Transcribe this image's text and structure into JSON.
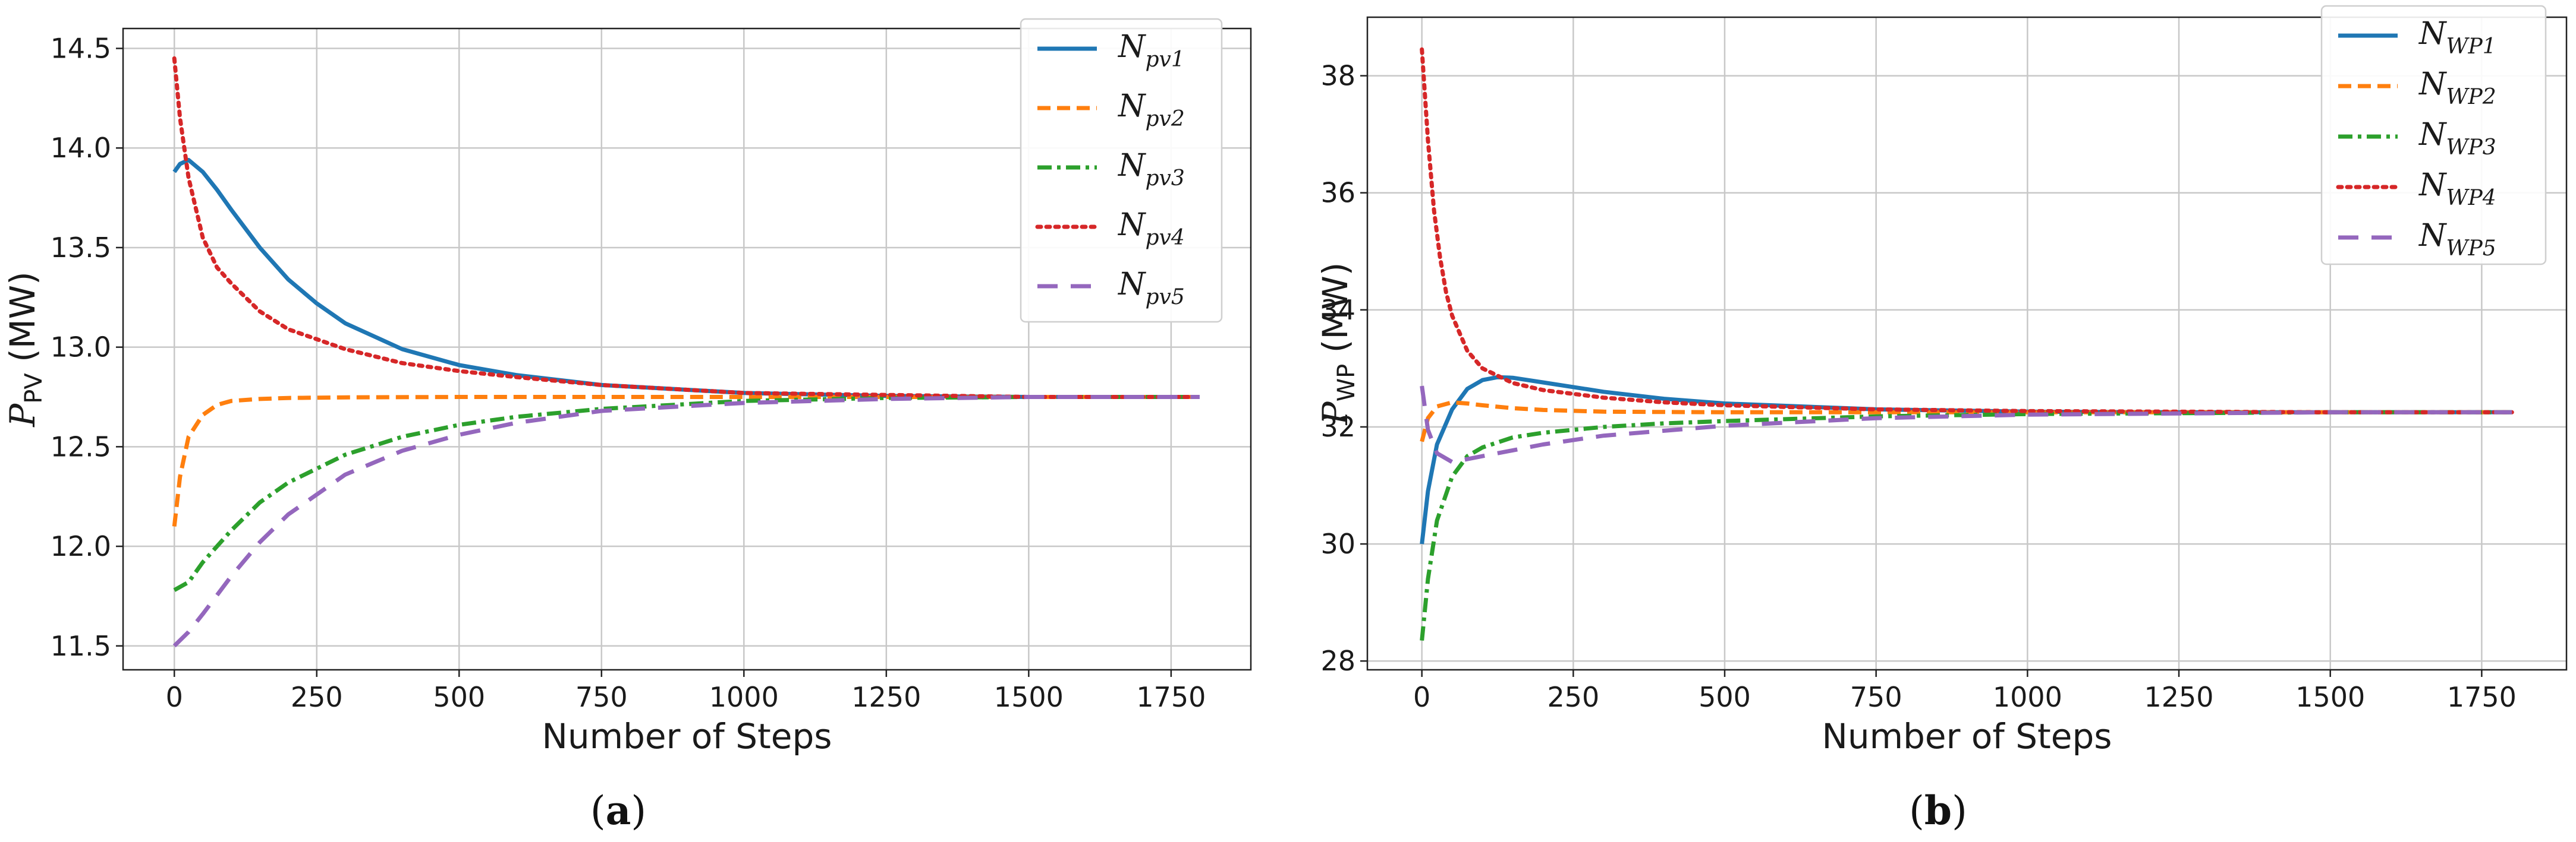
{
  "chart_data": [
    {
      "type": "line",
      "panel_label": "a",
      "xlabel": "Number of Steps",
      "ylabel_symbol": "P",
      "ylabel_subscript": "PV",
      "ylabel_unit": "(MW)",
      "xlim": [
        -90,
        1890
      ],
      "ylim": [
        11.38,
        14.6
      ],
      "xticks": [
        0,
        250,
        500,
        750,
        1000,
        1250,
        1500,
        1750
      ],
      "yticks": [
        11.5,
        12.0,
        12.5,
        13.0,
        13.5,
        14.0,
        14.5
      ],
      "ytick_labels": [
        "11.5",
        "12.0",
        "12.5",
        "13.0",
        "13.5",
        "14.0",
        "14.5"
      ],
      "grid": true,
      "legend_position": "top-right",
      "series": [
        {
          "name": "N",
          "sub": "pv1",
          "color": "#1f77b4",
          "dash": "solid",
          "x": [
            0,
            10,
            25,
            50,
            75,
            100,
            150,
            200,
            250,
            300,
            400,
            500,
            600,
            750,
            1000,
            1250,
            1500,
            1800
          ],
          "y": [
            13.88,
            13.92,
            13.94,
            13.88,
            13.79,
            13.69,
            13.5,
            13.34,
            13.22,
            13.12,
            12.99,
            12.91,
            12.86,
            12.81,
            12.77,
            12.755,
            12.75,
            12.75
          ]
        },
        {
          "name": "N",
          "sub": "pv2",
          "color": "#ff7f0e",
          "dash": "dashed",
          "x": [
            0,
            10,
            25,
            50,
            75,
            100,
            150,
            200,
            300,
            500,
            750,
            1000,
            1250,
            1500,
            1800
          ],
          "y": [
            12.1,
            12.35,
            12.55,
            12.66,
            12.71,
            12.73,
            12.74,
            12.745,
            12.748,
            12.75,
            12.75,
            12.75,
            12.75,
            12.75,
            12.75
          ]
        },
        {
          "name": "N",
          "sub": "pv3",
          "color": "#2ca02c",
          "dash": "dashdot",
          "x": [
            0,
            25,
            50,
            100,
            150,
            200,
            300,
            400,
            500,
            600,
            750,
            1000,
            1250,
            1500,
            1800
          ],
          "y": [
            11.78,
            11.82,
            11.92,
            12.08,
            12.22,
            12.32,
            12.46,
            12.55,
            12.61,
            12.65,
            12.69,
            12.73,
            12.745,
            12.75,
            12.75
          ]
        },
        {
          "name": "N",
          "sub": "pv4",
          "color": "#d62728",
          "dash": "dotted",
          "x": [
            0,
            10,
            25,
            50,
            75,
            100,
            150,
            200,
            300,
            400,
            500,
            600,
            750,
            1000,
            1250,
            1500,
            1800
          ],
          "y": [
            14.45,
            14.15,
            13.85,
            13.55,
            13.4,
            13.32,
            13.18,
            13.09,
            12.99,
            12.92,
            12.88,
            12.85,
            12.81,
            12.77,
            12.76,
            12.75,
            12.75
          ]
        },
        {
          "name": "N",
          "sub": "pv5",
          "color": "#9467bd",
          "dash": "longdash",
          "x": [
            0,
            25,
            50,
            100,
            150,
            200,
            300,
            400,
            500,
            600,
            750,
            1000,
            1250,
            1500,
            1800
          ],
          "y": [
            11.5,
            11.57,
            11.66,
            11.85,
            12.02,
            12.16,
            12.36,
            12.48,
            12.56,
            12.62,
            12.68,
            12.72,
            12.74,
            12.75,
            12.75
          ]
        }
      ]
    },
    {
      "type": "line",
      "panel_label": "b",
      "xlabel": "Number of Steps",
      "ylabel_symbol": "P",
      "ylabel_subscript": "WP",
      "ylabel_unit": "(MW)",
      "xlim": [
        -90,
        1890
      ],
      "ylim": [
        27.85,
        39.0
      ],
      "xticks": [
        0,
        250,
        500,
        750,
        1000,
        1250,
        1500,
        1750
      ],
      "yticks": [
        28,
        30,
        32,
        34,
        36,
        38
      ],
      "ytick_labels": [
        "28",
        "30",
        "32",
        "34",
        "36",
        "38"
      ],
      "grid": true,
      "legend_position": "top-right",
      "series": [
        {
          "name": "N",
          "sub": "WP1",
          "color": "#1f77b4",
          "dash": "solid",
          "x": [
            0,
            10,
            25,
            50,
            75,
            100,
            125,
            150,
            200,
            300,
            400,
            500,
            750,
            1000,
            1250,
            1500,
            1800
          ],
          "y": [
            30.0,
            30.9,
            31.7,
            32.3,
            32.65,
            32.8,
            32.85,
            32.84,
            32.76,
            32.6,
            32.48,
            32.4,
            32.3,
            32.26,
            32.25,
            32.25,
            32.25
          ]
        },
        {
          "name": "N",
          "sub": "WP2",
          "color": "#ff7f0e",
          "dash": "dashed",
          "x": [
            0,
            10,
            25,
            50,
            75,
            100,
            150,
            200,
            300,
            500,
            750,
            1000,
            1500,
            1800
          ],
          "y": [
            31.75,
            32.15,
            32.35,
            32.42,
            32.4,
            32.37,
            32.32,
            32.29,
            32.26,
            32.25,
            32.25,
            32.25,
            32.25,
            32.25
          ]
        },
        {
          "name": "N",
          "sub": "WP3",
          "color": "#2ca02c",
          "dash": "dashdot",
          "x": [
            0,
            10,
            25,
            50,
            75,
            100,
            150,
            200,
            300,
            400,
            500,
            750,
            1000,
            1500,
            1800
          ],
          "y": [
            28.35,
            29.4,
            30.4,
            31.15,
            31.5,
            31.65,
            31.82,
            31.9,
            32.0,
            32.06,
            32.1,
            32.18,
            32.22,
            32.25,
            32.25
          ]
        },
        {
          "name": "N",
          "sub": "WP4",
          "color": "#d62728",
          "dash": "dotted",
          "x": [
            0,
            10,
            20,
            30,
            40,
            50,
            75,
            100,
            150,
            200,
            300,
            400,
            500,
            750,
            1000,
            1500,
            1800
          ],
          "y": [
            38.45,
            36.9,
            35.7,
            34.9,
            34.3,
            33.9,
            33.3,
            33.0,
            32.75,
            32.63,
            32.5,
            32.42,
            32.37,
            32.3,
            32.27,
            32.25,
            32.25
          ]
        },
        {
          "name": "N",
          "sub": "WP5",
          "color": "#9467bd",
          "dash": "longdash",
          "x": [
            0,
            10,
            25,
            50,
            75,
            100,
            150,
            200,
            300,
            500,
            750,
            1000,
            1500,
            1800
          ],
          "y": [
            32.7,
            31.95,
            31.55,
            31.4,
            31.45,
            31.5,
            31.6,
            31.7,
            31.85,
            32.02,
            32.15,
            32.21,
            32.25,
            32.25
          ]
        }
      ]
    }
  ]
}
